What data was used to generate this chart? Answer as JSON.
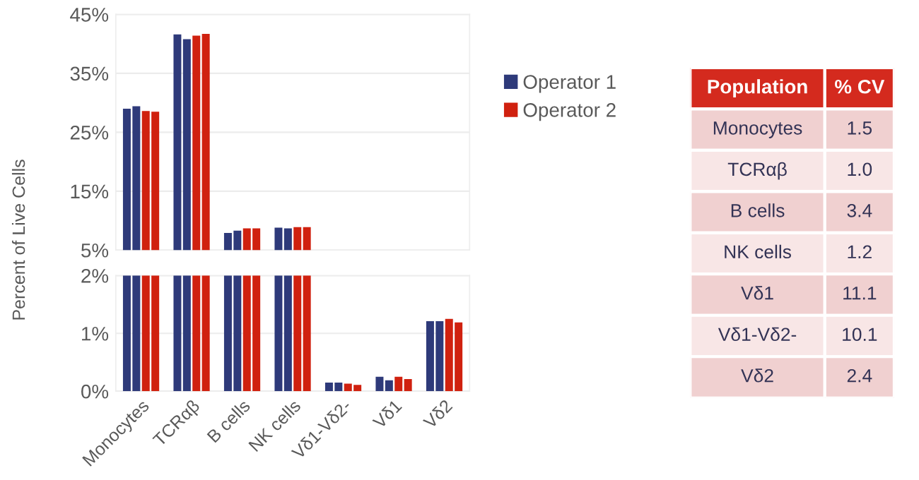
{
  "chart_data": [
    {
      "type": "bar",
      "ylabel": "Percent of Live Cells",
      "series": [
        {
          "name": "Operator 1",
          "color": "#2e3a7a",
          "values": [
            29.0,
            41.6,
            7.9,
            8.8,
            null,
            null,
            null
          ]
        },
        {
          "color": "#2e3a7a",
          "values": [
            29.4,
            40.8,
            8.3,
            8.7,
            null,
            null,
            null
          ]
        },
        {
          "name": "Operator 2",
          "color": "#d0210f",
          "values": [
            28.6,
            41.4,
            8.7,
            8.9,
            null,
            null,
            null
          ]
        },
        {
          "color": "#d0210f",
          "values": [
            28.5,
            41.7,
            8.7,
            8.9,
            null,
            null,
            null
          ]
        }
      ],
      "ylim": [
        5,
        45
      ],
      "yticks": [
        {
          "value": 5,
          "label": "5%"
        },
        {
          "value": 15,
          "label": "15%"
        },
        {
          "value": 25,
          "label": "25%"
        },
        {
          "value": 35,
          "label": "35%"
        },
        {
          "value": 45,
          "label": "45%"
        }
      ],
      "grid": "y",
      "legend": "right",
      "tick_labels": "y"
    },
    {
      "type": "bar",
      "categories": [
        "Monocytes",
        "TCRαβ",
        "B cells",
        "NK cells",
        "Vδ1-Vδ2-",
        "Vδ1",
        "Vδ2"
      ],
      "series": [
        {
          "color": "#2e3a7a",
          "values": [
            2,
            2,
            2,
            2,
            0.15,
            0.25,
            1.21
          ]
        },
        {
          "color": "#2e3a7a",
          "values": [
            2,
            2,
            2,
            2,
            0.15,
            0.19,
            1.21
          ]
        },
        {
          "color": "#d0210f",
          "values": [
            2,
            2,
            2,
            2,
            0.13,
            0.25,
            1.25
          ]
        },
        {
          "color": "#d0210f",
          "values": [
            2,
            2,
            2,
            2,
            0.11,
            0.21,
            1.19
          ]
        }
      ],
      "ylim": [
        0,
        2
      ],
      "yticks": [
        {
          "value": 0,
          "label": "0%"
        },
        {
          "value": 1,
          "label": "1%"
        },
        {
          "value": 2,
          "label": "2%"
        }
      ],
      "grid": "y"
    },
    {
      "type": "other",
      "xlabel": "Population",
      "ylabel": "% CV",
      "color": "#d42a1e",
      "colors": [
        "#f0d0d0",
        "#f8e6e6",
        "#f0d0d0",
        "#f8e6e6",
        "#f0d0d0",
        "#f8e6e6",
        "#f0d0d0"
      ],
      "categories": [
        "Monocytes",
        "TCRαβ",
        "B cells",
        "NK cells",
        "Vδ1",
        "Vδ1-Vδ2-",
        "Vδ2"
      ],
      "value_labels": [
        "1.5",
        "1.0",
        "3.4",
        "1.2",
        "11.1",
        "10.1",
        "2.4"
      ]
    }
  ]
}
